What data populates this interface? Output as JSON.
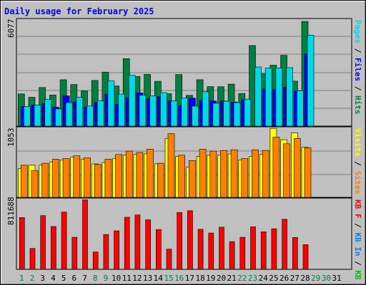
{
  "chart_data": [
    {
      "type": "bar",
      "panel": "top",
      "title": "Daily usage for February 2025",
      "ymax_label": "6077",
      "ymax": 6077,
      "right_label": [
        {
          "text": "Pages",
          "color": "#00d8e8"
        },
        {
          "text": " / ",
          "color": "#000000"
        },
        {
          "text": "Files",
          "color": "#0000ff"
        },
        {
          "text": " / ",
          "color": "#000000"
        },
        {
          "text": "Hits",
          "color": "#008040"
        }
      ],
      "categories": [
        "1",
        "2",
        "3",
        "4",
        "5",
        "6",
        "7",
        "8",
        "9",
        "10",
        "11",
        "12",
        "13",
        "14",
        "15",
        "16",
        "17",
        "18",
        "19",
        "20",
        "21",
        "22",
        "23",
        "24",
        "25",
        "26",
        "27",
        "28",
        "29",
        "30",
        "31"
      ],
      "series": [
        {
          "name": "Hits",
          "color": "#008040",
          "values": [
            1820,
            1630,
            2180,
            1760,
            2620,
            2350,
            1990,
            2580,
            3050,
            2270,
            3810,
            2800,
            2920,
            2530,
            1830,
            2910,
            1740,
            2620,
            2230,
            2220,
            2370,
            1840,
            4550,
            2960,
            3440,
            4000,
            2540,
            5910,
            null,
            null,
            null
          ]
        },
        {
          "name": "Files",
          "color": "#0000ff",
          "values": [
            1110,
            1190,
            1280,
            1070,
            1710,
            1360,
            1080,
            1350,
            1810,
            1230,
            1590,
            1880,
            1540,
            1660,
            1420,
            1150,
            1580,
            1450,
            1420,
            1420,
            1360,
            1470,
            null,
            2100,
            2060,
            2190,
            1980,
            4080,
            null,
            null,
            null
          ]
        },
        {
          "name": "Pages",
          "color": "#00d8e8",
          "values": [
            1110,
            1190,
            1500,
            970,
            1330,
            1630,
            1130,
            1420,
            2550,
            1810,
            2870,
            1750,
            1720,
            1890,
            1420,
            1580,
            1130,
            1940,
            1290,
            1410,
            1330,
            1520,
            3340,
            3280,
            3290,
            3300,
            2000,
            5140,
            null,
            null,
            null
          ]
        }
      ]
    },
    {
      "type": "bar",
      "panel": "middle",
      "ymax_label": "1053",
      "ymax": 1053,
      "right_label": [
        {
          "text": "Visits",
          "color": "#ffff00"
        },
        {
          "text": " / ",
          "color": "#000000"
        },
        {
          "text": "Sites",
          "color": "#ff8000"
        }
      ],
      "categories": [
        "1",
        "2",
        "3",
        "4",
        "5",
        "6",
        "7",
        "8",
        "9",
        "10",
        "11",
        "12",
        "13",
        "14",
        "15",
        "16",
        "17",
        "18",
        "19",
        "20",
        "21",
        "22",
        "23",
        "24",
        "25",
        "26",
        "27",
        "28",
        "29",
        "30",
        "31"
      ],
      "series": [
        {
          "name": "Visits",
          "color": "#ffff00",
          "values": [
            430,
            480,
            480,
            530,
            560,
            600,
            570,
            500,
            520,
            580,
            630,
            640,
            650,
            500,
            880,
            610,
            450,
            610,
            630,
            630,
            650,
            560,
            610,
            640,
            1030,
            860,
            960,
            750,
            null,
            null,
            null
          ]
        },
        {
          "name": "Sites",
          "color": "#ff8000",
          "values": [
            480,
            400,
            510,
            570,
            580,
            620,
            590,
            490,
            570,
            640,
            690,
            670,
            720,
            510,
            950,
            630,
            550,
            720,
            690,
            700,
            710,
            580,
            710,
            700,
            900,
            800,
            880,
            740,
            null,
            null,
            null
          ]
        }
      ]
    },
    {
      "type": "bar",
      "panel": "bottom",
      "ymax_label": "811688",
      "ymax": 811688,
      "right_label": [
        {
          "text": "KB F",
          "color": "#ff0000"
        },
        {
          "text": " / ",
          "color": "#000000"
        },
        {
          "text": "KB In",
          "color": "#0080ff"
        },
        {
          "text": " / ",
          "color": "#000000"
        },
        {
          "text": "KB Out",
          "color": "#00c000"
        }
      ],
      "categories": [
        "1",
        "2",
        "3",
        "4",
        "5",
        "6",
        "7",
        "8",
        "9",
        "10",
        "11",
        "12",
        "13",
        "14",
        "15",
        "16",
        "17",
        "18",
        "19",
        "20",
        "21",
        "22",
        "23",
        "24",
        "25",
        "26",
        "27",
        "28",
        "29",
        "30",
        "31"
      ],
      "series": [
        {
          "name": "KB F",
          "color": "#ff0000",
          "values": [
            590000,
            238000,
            612000,
            488000,
            652000,
            365000,
            791000,
            197000,
            397000,
            438000,
            593000,
            620000,
            564000,
            453000,
            230000,
            648000,
            667000,
            456000,
            413000,
            480000,
            316000,
            365000,
            484000,
            428000,
            462000,
            570000,
            363000,
            281000,
            null,
            null,
            null
          ]
        }
      ]
    }
  ],
  "x_axis": {
    "labels": [
      "1",
      "2",
      "3",
      "4",
      "5",
      "6",
      "7",
      "8",
      "9",
      "10",
      "11",
      "12",
      "13",
      "14",
      "15",
      "16",
      "17",
      "18",
      "19",
      "20",
      "21",
      "22",
      "23",
      "24",
      "25",
      "26",
      "27",
      "28",
      "29",
      "30",
      "31"
    ],
    "weekend_days": [
      "1",
      "2",
      "8",
      "9",
      "15",
      "16",
      "22",
      "23",
      "29",
      "30"
    ],
    "weekday_color": "#000000",
    "weekend_color": "#008040"
  },
  "colors": {
    "background": "#c0c0c0",
    "plot_background": "#c0c0c0",
    "gridline": "#808080",
    "title": "#0000ff"
  }
}
